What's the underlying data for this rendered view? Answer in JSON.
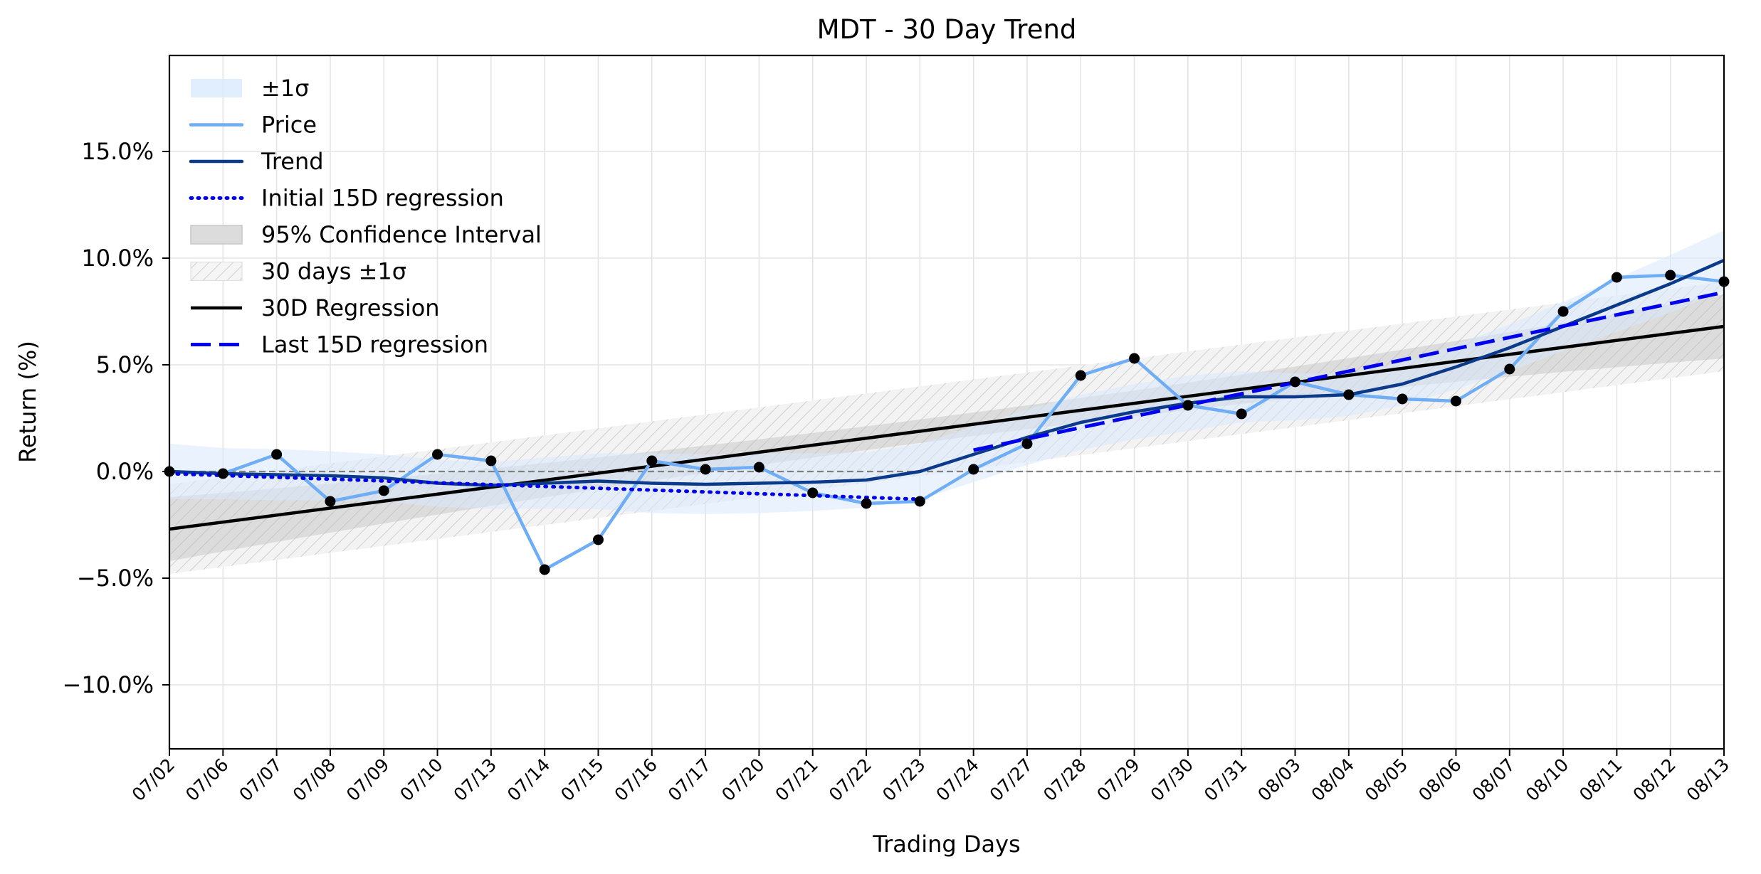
{
  "chart_data": {
    "type": "line",
    "title": "MDT - 30 Day Trend",
    "xlabel": "Trading Days",
    "ylabel": "Return (%)",
    "categories": [
      "07/02",
      "07/06",
      "07/07",
      "07/08",
      "07/09",
      "07/10",
      "07/13",
      "07/14",
      "07/15",
      "07/16",
      "07/17",
      "07/20",
      "07/21",
      "07/22",
      "07/23",
      "07/24",
      "07/27",
      "07/28",
      "07/29",
      "07/30",
      "07/31",
      "08/03",
      "08/04",
      "08/05",
      "08/06",
      "08/07",
      "08/10",
      "08/11",
      "08/12",
      "08/13"
    ],
    "ylim": [
      -13,
      19.5
    ],
    "yticks": [
      -10,
      -5,
      0,
      5,
      10,
      15
    ],
    "ytick_labels": [
      "−10.0%",
      "−5.0%",
      "0.0%",
      "5.0%",
      "10.0%",
      "15.0%"
    ],
    "grid": true,
    "zero_line": 0,
    "legend_position": "upper-left",
    "legend": [
      "±1σ",
      "Price",
      "Trend",
      "Initial 15D regression",
      "95% Confidence Interval",
      "30 days ±1σ",
      "30D Regression",
      "Last 15D regression"
    ],
    "series": [
      {
        "name": "Price",
        "color": "#6fadf5",
        "values": [
          0.0,
          -0.1,
          0.8,
          -1.4,
          -0.9,
          0.8,
          0.5,
          -4.6,
          -3.2,
          0.5,
          0.1,
          0.2,
          -1.0,
          -1.5,
          -1.4,
          0.1,
          1.3,
          4.5,
          5.3,
          3.1,
          2.7,
          4.2,
          3.6,
          3.4,
          3.3,
          4.8,
          7.5,
          9.1,
          9.2,
          8.9
        ]
      },
      {
        "name": "Trend",
        "color": "#0b3a8a",
        "values": [
          0.0,
          -0.1,
          -0.15,
          -0.2,
          -0.3,
          -0.55,
          -0.65,
          -0.55,
          -0.45,
          -0.55,
          -0.6,
          -0.55,
          -0.5,
          -0.4,
          0.0,
          0.8,
          1.6,
          2.3,
          2.8,
          3.2,
          3.5,
          3.5,
          3.6,
          4.1,
          4.9,
          5.8,
          6.8,
          7.8,
          8.8,
          9.9
        ]
      },
      {
        "name": "Initial 15D regression",
        "color": "#0000ee",
        "dash": "dotted",
        "x_range": [
          0,
          14
        ],
        "y_range": [
          -0.1,
          -1.3
        ]
      },
      {
        "name": "30D Regression",
        "color": "#000000",
        "x_range": [
          0,
          29
        ],
        "y_range": [
          -2.7,
          6.8
        ]
      },
      {
        "name": "Last 15D regression",
        "color": "#0000ee",
        "dash": "dashed",
        "x_range": [
          15,
          29
        ],
        "y_range": [
          1.0,
          8.4
        ]
      }
    ],
    "bands": [
      {
        "name": "±1σ",
        "color": "#d8eafc",
        "about": "Trend",
        "halfwidth": [
          1.3,
          1.2,
          1.2,
          1.15,
          1.1,
          1.1,
          1.1,
          1.2,
          1.3,
          1.4,
          1.4,
          1.4,
          1.35,
          1.3,
          1.3,
          1.3,
          1.3,
          1.3,
          1.3,
          1.3,
          1.2,
          1.1,
          1.0,
          1.0,
          1.05,
          1.1,
          1.15,
          1.25,
          1.35,
          1.4
        ]
      },
      {
        "name": "95% Confidence Interval",
        "color": "#b8b8b8",
        "about": "30D Regression",
        "halfwidth_start": 1.5,
        "halfwidth_mid": 0.55,
        "halfwidth_end": 1.5
      },
      {
        "name": "30 days ±1σ",
        "color": "#d6d6d6",
        "hatched": true,
        "about": "30D Regression",
        "halfwidth": 2.1
      }
    ]
  }
}
